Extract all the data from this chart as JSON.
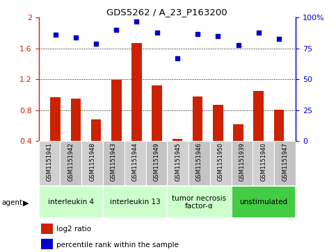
{
  "title": "GDS5262 / A_23_P163200",
  "samples": [
    "GSM1151941",
    "GSM1151942",
    "GSM1151948",
    "GSM1151943",
    "GSM1151944",
    "GSM1151949",
    "GSM1151945",
    "GSM1151946",
    "GSM1151950",
    "GSM1151939",
    "GSM1151940",
    "GSM1151947"
  ],
  "log2_ratio": [
    0.97,
    0.95,
    0.68,
    1.19,
    1.67,
    1.12,
    0.43,
    0.98,
    0.87,
    0.62,
    1.05,
    0.81
  ],
  "percentile": [
    86,
    84,
    79,
    90,
    97,
    88,
    67,
    87,
    85,
    78,
    88,
    83
  ],
  "bar_color": "#cc2200",
  "dot_color": "#0000cc",
  "ylim_left": [
    0.4,
    2.0
  ],
  "yticks_left": [
    0.4,
    0.8,
    1.2,
    1.6,
    2.0
  ],
  "ytick_left_labels": [
    "0.4",
    "0.8",
    "1.2",
    "1.6",
    "2"
  ],
  "ylim_right": [
    0,
    100
  ],
  "yticks_right": [
    0,
    25,
    50,
    75,
    100
  ],
  "ytick_right_labels": [
    "0",
    "25",
    "50",
    "75",
    "100%"
  ],
  "grid_yticks": [
    0.8,
    1.2,
    1.6
  ],
  "groups": [
    {
      "label": "interleukin 4",
      "start": 0,
      "end": 3,
      "color": "#ccffcc"
    },
    {
      "label": "interleukin 13",
      "start": 3,
      "end": 6,
      "color": "#ccffcc"
    },
    {
      "label": "tumor necrosis\nfactor-α",
      "start": 6,
      "end": 9,
      "color": "#ccffcc"
    },
    {
      "label": "unstimulated",
      "start": 9,
      "end": 12,
      "color": "#44cc44"
    }
  ],
  "legend_items": [
    {
      "label": "log2 ratio",
      "color": "#cc2200"
    },
    {
      "label": "percentile rank within the sample",
      "color": "#0000cc"
    }
  ],
  "tick_area_bg": "#c8c8c8",
  "plot_bg": "#ffffff",
  "bar_width": 0.5
}
